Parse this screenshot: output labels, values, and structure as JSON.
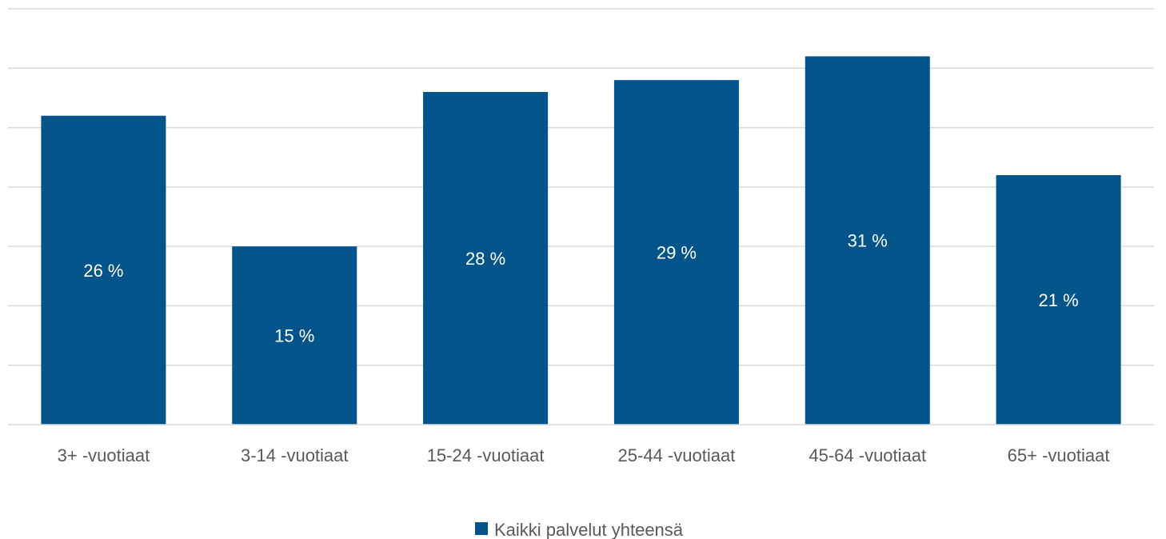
{
  "chart_data": {
    "type": "bar",
    "categories": [
      "3+ -vuotiaat",
      "3-14 -vuotiaat",
      "15-24 -vuotiaat",
      "25-44 -vuotiaat",
      "45-64 -vuotiaat",
      "65+ -vuotiaat"
    ],
    "series": [
      {
        "name": "Kaikki palvelut yhteensä",
        "values": [
          26,
          15,
          28,
          29,
          31,
          21
        ],
        "labels": [
          "26 %",
          "15 %",
          "28 %",
          "29 %",
          "31 %",
          "21 %"
        ],
        "color": "#02548a"
      }
    ],
    "ylim": [
      0,
      35
    ],
    "y_grid_step": 5,
    "y_axis_visible": false,
    "grid": true,
    "legend_position": "bottom-center",
    "gridline_color": "#d9d9d9",
    "label_color": "#595959",
    "data_label_color": "#ffffff"
  }
}
